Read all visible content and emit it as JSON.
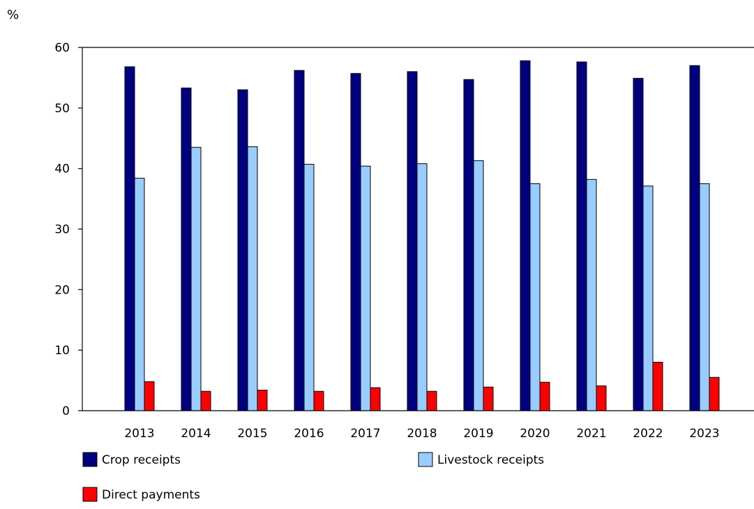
{
  "chart_data": {
    "type": "bar",
    "y_unit": "%",
    "categories": [
      "2013",
      "2014",
      "2015",
      "2016",
      "2017",
      "2018",
      "2019",
      "2020",
      "2021",
      "2022",
      "2023"
    ],
    "series": [
      {
        "name": "Crop receipts",
        "color": "#000080",
        "values": [
          56.8,
          53.3,
          53.0,
          56.2,
          55.7,
          56.0,
          54.7,
          57.8,
          57.6,
          54.9,
          57.0
        ]
      },
      {
        "name": "Livestock receipts",
        "color": "#99ccff",
        "values": [
          38.4,
          43.5,
          43.6,
          40.7,
          40.4,
          40.8,
          41.3,
          37.5,
          38.2,
          37.1,
          37.5
        ]
      },
      {
        "name": "Direct payments",
        "color": "#ff0000",
        "values": [
          4.8,
          3.2,
          3.4,
          3.2,
          3.8,
          3.2,
          3.9,
          4.7,
          4.1,
          8.0,
          5.5
        ]
      }
    ],
    "yticks": [
      0,
      10,
      20,
      30,
      40,
      50,
      60
    ],
    "ylim": [
      0,
      60
    ],
    "grid": false,
    "legend_position": "bottom"
  }
}
